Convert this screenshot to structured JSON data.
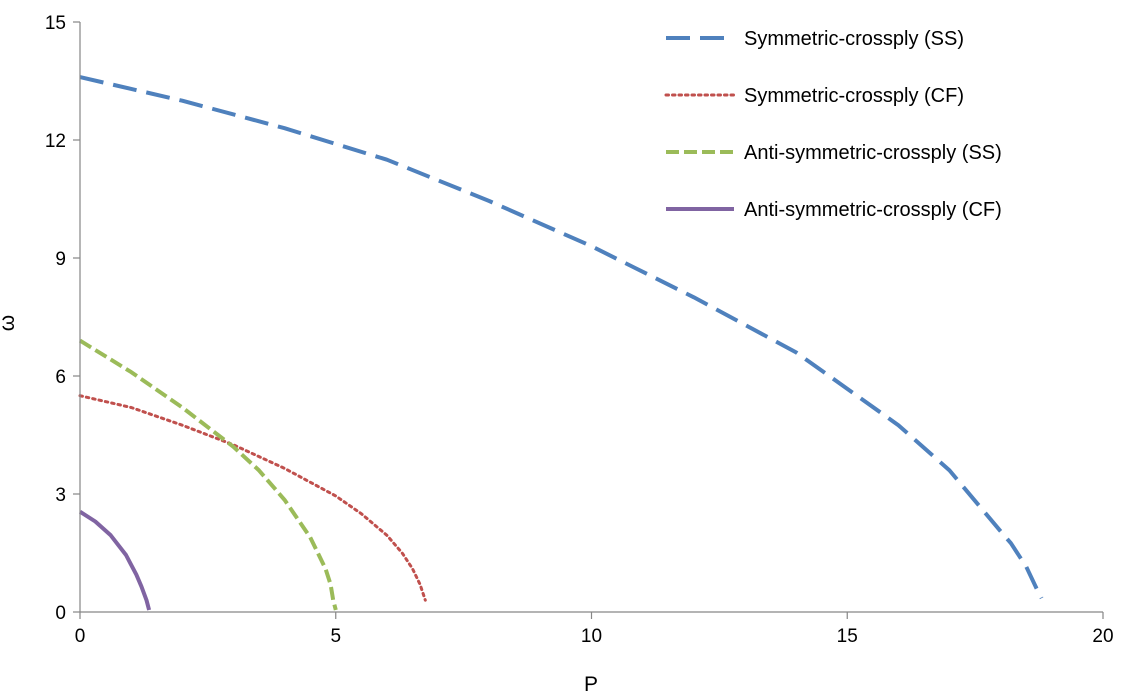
{
  "chart_data": {
    "type": "line",
    "xlabel": "P",
    "ylabel": "ω",
    "xlim": [
      0,
      20
    ],
    "ylim": [
      0,
      15
    ],
    "x_ticks": [
      "0",
      "5",
      "10",
      "15",
      "20"
    ],
    "y_ticks": [
      "0",
      "3",
      "6",
      "9",
      "12",
      "15"
    ],
    "grid": false,
    "legend_position": "top-right",
    "series": [
      {
        "name": "Symmetric-crossply (SS)",
        "color": "#4f81bd",
        "style": "long-dash",
        "x": [
          0,
          2,
          4,
          6,
          8,
          10,
          12,
          14,
          16,
          17,
          18,
          18.2,
          18.5,
          18.7,
          18.8
        ],
        "y": [
          13.6,
          13.0,
          12.3,
          11.5,
          10.45,
          9.3,
          8.0,
          6.6,
          4.75,
          3.6,
          2.05,
          1.75,
          1.15,
          0.6,
          0.35
        ]
      },
      {
        "name": "Symmetric-crossply (CF)",
        "color": "#c0504d",
        "style": "dotted",
        "x": [
          0,
          1,
          2,
          3,
          4,
          5,
          5.5,
          6,
          6.3,
          6.5,
          6.65,
          6.75
        ],
        "y": [
          5.5,
          5.2,
          4.75,
          4.25,
          3.65,
          2.95,
          2.5,
          1.95,
          1.5,
          1.1,
          0.7,
          0.3
        ]
      },
      {
        "name": "Anti-symmetric-crossply (SS)",
        "color": "#9bbb59",
        "style": "short-dash",
        "x": [
          0,
          1,
          2,
          3,
          3.5,
          4,
          4.5,
          4.8,
          4.9,
          4.95,
          5.0
        ],
        "y": [
          6.9,
          6.1,
          5.2,
          4.2,
          3.6,
          2.85,
          1.9,
          1.1,
          0.7,
          0.3,
          0.05
        ]
      },
      {
        "name": "Anti-symmetric-crossply (CF)",
        "color": "#8064a2",
        "style": "solid",
        "x": [
          0,
          0.3,
          0.6,
          0.9,
          1.1,
          1.2,
          1.3,
          1.35
        ],
        "y": [
          2.55,
          2.3,
          1.95,
          1.45,
          0.95,
          0.65,
          0.3,
          0.05
        ]
      }
    ]
  }
}
